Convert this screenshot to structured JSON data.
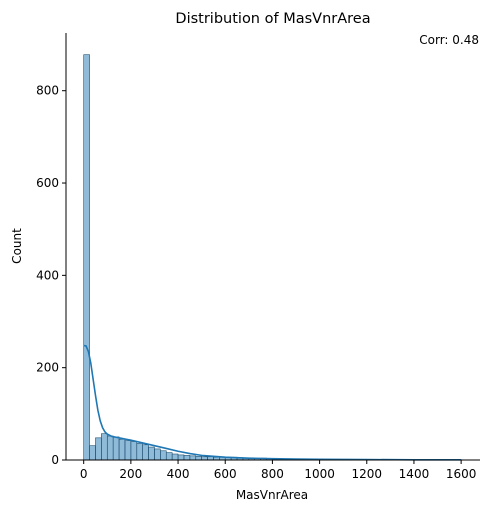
{
  "chart_data": {
    "type": "bar",
    "title": "Distribution of MasVnrArea",
    "annotation": "Corr: 0.48",
    "xlabel": "MasVnrArea",
    "ylabel": "Count",
    "xlim": [
      -75,
      1680
    ],
    "ylim": [
      0,
      925
    ],
    "xticks": [
      0,
      200,
      400,
      600,
      800,
      1000,
      1200,
      1400,
      1600
    ],
    "yticks": [
      0,
      200,
      400,
      600,
      800
    ],
    "bin_width": 25,
    "bin_start": 0,
    "bar_color": "#1f77b4",
    "counts": [
      878,
      31,
      48,
      57,
      52,
      50,
      45,
      42,
      40,
      36,
      33,
      28,
      24,
      20,
      16,
      13,
      11,
      10,
      9,
      8,
      7,
      7,
      6,
      6,
      6,
      6,
      5,
      4,
      3,
      3,
      4,
      3,
      2,
      2,
      2,
      1,
      1,
      1,
      1,
      1,
      1,
      1,
      1,
      0,
      1,
      0,
      1,
      0,
      0,
      1,
      0,
      0,
      0,
      0,
      0,
      0,
      0,
      0,
      0,
      0,
      0,
      0,
      0,
      1
    ],
    "kde": {
      "x": [
        0,
        10,
        20,
        30,
        40,
        50,
        60,
        70,
        80,
        90,
        100,
        120,
        140,
        160,
        180,
        200,
        250,
        300,
        350,
        400,
        450,
        500,
        550,
        600,
        650,
        700,
        800,
        900,
        1000,
        1200,
        1400,
        1600
      ],
      "y": [
        248,
        247,
        235,
        210,
        175,
        140,
        108,
        85,
        70,
        61,
        56,
        51,
        49,
        47,
        45,
        43,
        37,
        31,
        25,
        19,
        14,
        10,
        8,
        6,
        5,
        4,
        3,
        2,
        1.5,
        1,
        0.5,
        0.3
      ]
    }
  }
}
